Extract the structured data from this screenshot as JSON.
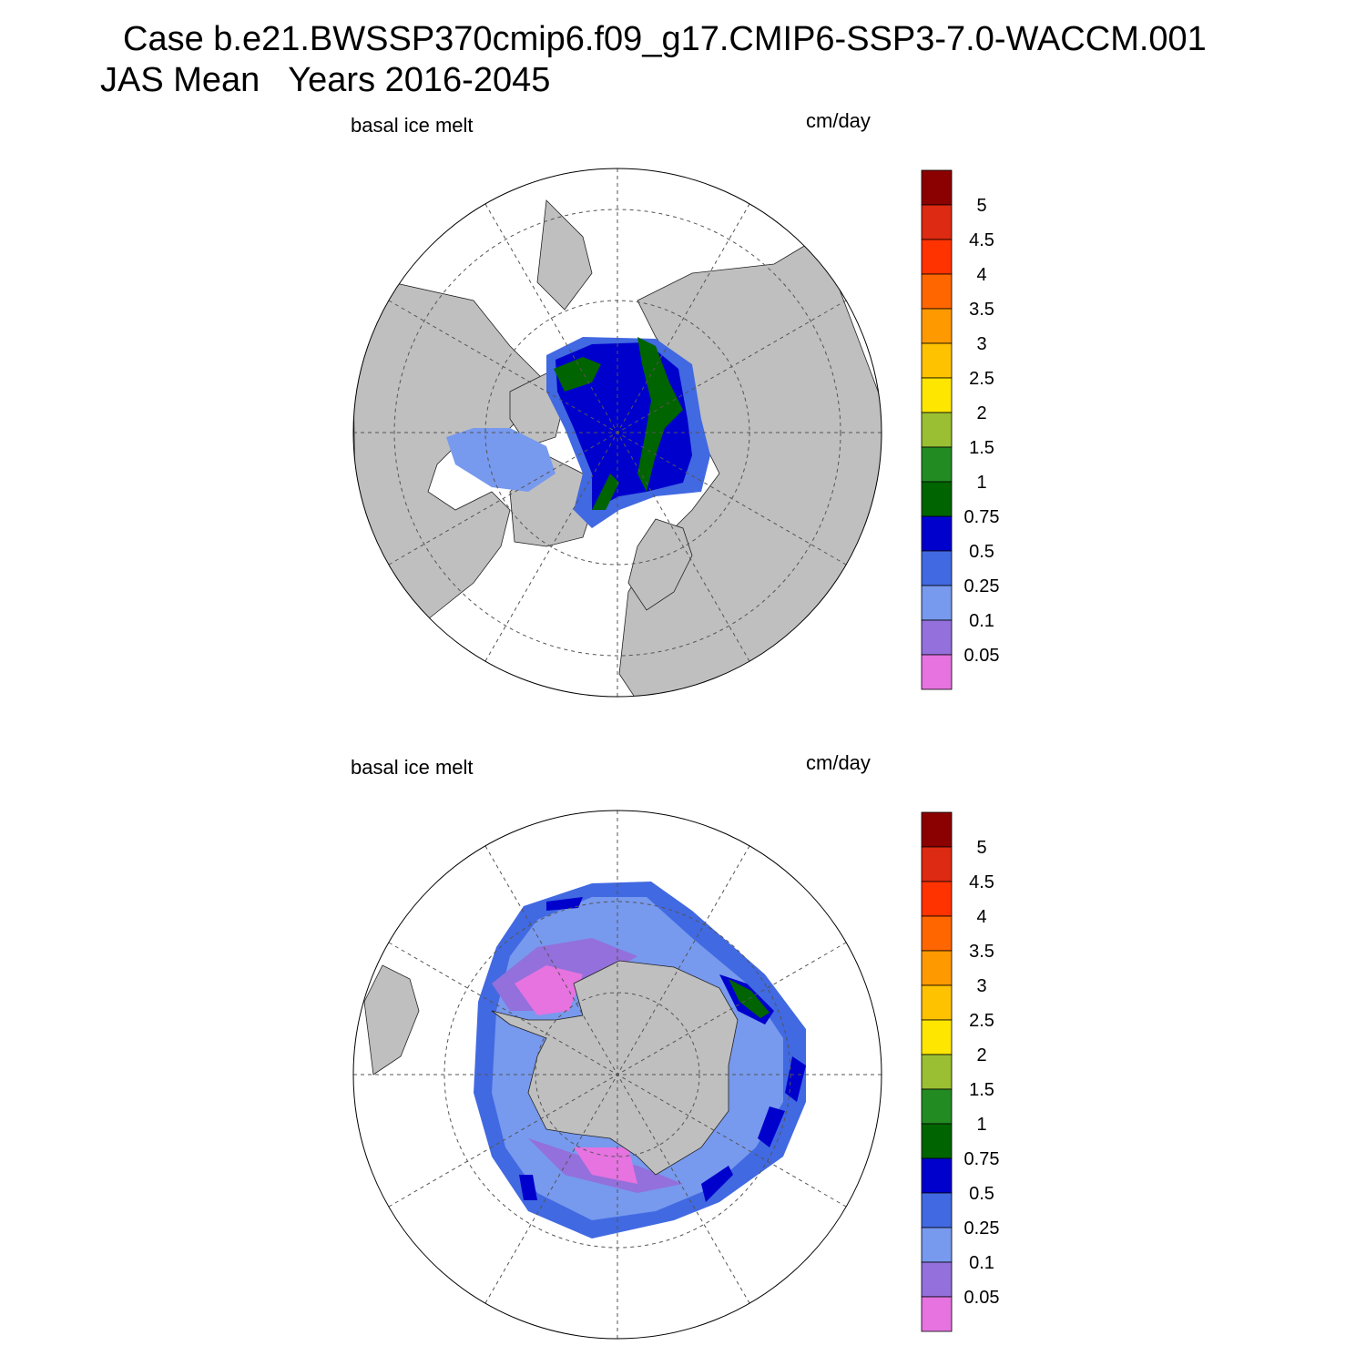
{
  "title": "Case b.e21.BWSSP370cmip6.f09_g17.CMIP6-SSP3-7.0-WACCM.001",
  "subtitle": "JAS Mean   Years 2016-2045",
  "panels": [
    {
      "label": "basal ice melt",
      "units": "cm/day"
    },
    {
      "label": "basal ice melt",
      "units": "cm/day"
    }
  ],
  "colorbar": {
    "levels": [
      5,
      4.5,
      4,
      3.5,
      3,
      2.5,
      2,
      1.5,
      1,
      0.75,
      0.5,
      0.25,
      0.1,
      0.05
    ],
    "colors": [
      "#8b0000",
      "#dd2a12",
      "#ff3300",
      "#ff6600",
      "#ff9900",
      "#ffc200",
      "#ffe600",
      "#9abf33",
      "#228b22",
      "#006400",
      "#0000cd",
      "#4169e1",
      "#7799ee",
      "#9370db",
      "#e673e0"
    ]
  }
}
